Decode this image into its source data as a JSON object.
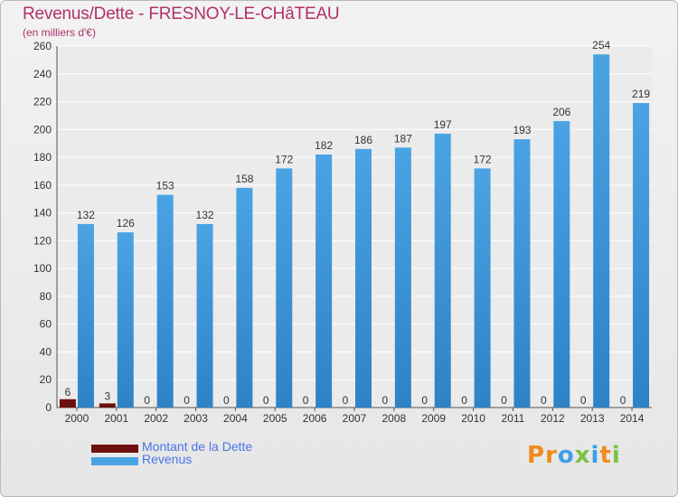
{
  "header": {
    "title": "Revenus/Dette - FRESNOY-LE-CHâTEAU",
    "subtitle": "(en milliers d'€)"
  },
  "colors": {
    "title": "#b0306a",
    "debt": "#6b0f0f",
    "revenue": "#4aa3e3",
    "revenue_dark": "#2e82c6",
    "legend_text": "#4b73e6"
  },
  "legend": [
    {
      "label": "Montant de la Dette",
      "color": "#6b0f0f"
    },
    {
      "label": "Revenus",
      "color": "#4aa3e3"
    }
  ],
  "logo": {
    "text": "Proxiti"
  },
  "chart_data": {
    "type": "bar",
    "title": "Revenus/Dette - FRESNOY-LE-CHâTEAU",
    "ylabel": "(en milliers d'€)",
    "xlabel": "",
    "categories": [
      "2000",
      "2001",
      "2002",
      "2003",
      "2004",
      "2005",
      "2006",
      "2007",
      "2008",
      "2009",
      "2010",
      "2011",
      "2012",
      "2013",
      "2014"
    ],
    "yticks": [
      0,
      20,
      40,
      60,
      80,
      100,
      120,
      140,
      160,
      180,
      200,
      220,
      240,
      260
    ],
    "ylim": [
      0,
      260
    ],
    "grid": true,
    "legend_position": "bottom-left",
    "series": [
      {
        "name": "Montant de la Dette",
        "values": [
          6,
          3,
          0,
          0,
          0,
          0,
          0,
          0,
          0,
          0,
          0,
          0,
          0,
          0,
          0
        ]
      },
      {
        "name": "Revenus",
        "values": [
          132,
          126,
          153,
          132,
          158,
          172,
          182,
          186,
          187,
          197,
          172,
          193,
          206,
          254,
          219
        ]
      }
    ]
  }
}
